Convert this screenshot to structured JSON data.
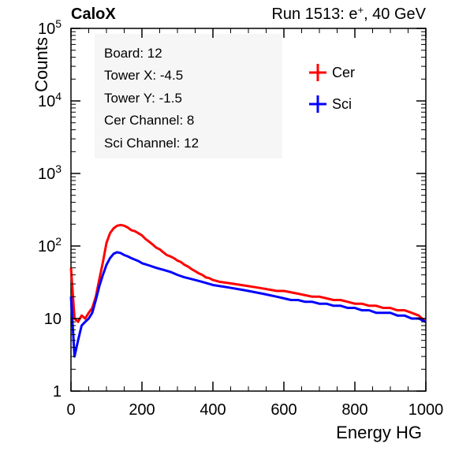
{
  "header": {
    "left": "CaloX",
    "right_prefix": "Run 1513: e",
    "right_sup": "+",
    "right_suffix": ", 40 GeV"
  },
  "info_box": {
    "lines": [
      "Board: 12",
      "Tower X: -4.5",
      "Tower Y: -1.5",
      "Cer Channel: 8",
      "Sci Channel: 12"
    ]
  },
  "chart_data": {
    "type": "line",
    "title": "",
    "xlabel": "Energy HG",
    "ylabel": "Counts",
    "xlim": [
      0,
      1000
    ],
    "ylim": [
      1,
      100000
    ],
    "yscale": "log",
    "grid": false,
    "legend_position": "top-right",
    "x_ticks": [
      0,
      200,
      400,
      600,
      800,
      1000
    ],
    "x_tick_labels": [
      "0",
      "200",
      "400",
      "600",
      "800",
      "1000"
    ],
    "y_ticks": [
      1,
      10,
      100,
      1000,
      10000,
      100000
    ],
    "y_tick_labels": [
      {
        "base": "1",
        "exp": ""
      },
      {
        "base": "10",
        "exp": ""
      },
      {
        "base": "10",
        "exp": "2"
      },
      {
        "base": "10",
        "exp": "3"
      },
      {
        "base": "10",
        "exp": "4"
      },
      {
        "base": "10",
        "exp": "5"
      }
    ],
    "series": [
      {
        "name": "Cer",
        "color": "#ff0000",
        "points": [
          [
            0,
            50
          ],
          [
            10,
            10
          ],
          [
            20,
            9
          ],
          [
            30,
            11
          ],
          [
            40,
            10
          ],
          [
            50,
            12
          ],
          [
            60,
            14
          ],
          [
            70,
            20
          ],
          [
            80,
            35
          ],
          [
            90,
            60
          ],
          [
            100,
            110
          ],
          [
            110,
            150
          ],
          [
            120,
            175
          ],
          [
            130,
            190
          ],
          [
            140,
            195
          ],
          [
            150,
            190
          ],
          [
            160,
            180
          ],
          [
            170,
            165
          ],
          [
            180,
            160
          ],
          [
            190,
            150
          ],
          [
            200,
            140
          ],
          [
            210,
            125
          ],
          [
            220,
            115
          ],
          [
            230,
            105
          ],
          [
            240,
            95
          ],
          [
            250,
            90
          ],
          [
            260,
            82
          ],
          [
            270,
            75
          ],
          [
            280,
            72
          ],
          [
            290,
            68
          ],
          [
            300,
            63
          ],
          [
            310,
            60
          ],
          [
            320,
            55
          ],
          [
            330,
            52
          ],
          [
            340,
            48
          ],
          [
            350,
            45
          ],
          [
            360,
            42
          ],
          [
            370,
            40
          ],
          [
            380,
            37
          ],
          [
            390,
            36
          ],
          [
            400,
            34
          ],
          [
            420,
            32
          ],
          [
            440,
            31
          ],
          [
            460,
            30
          ],
          [
            480,
            29
          ],
          [
            500,
            28
          ],
          [
            520,
            27
          ],
          [
            540,
            26
          ],
          [
            560,
            25
          ],
          [
            580,
            24
          ],
          [
            600,
            24
          ],
          [
            620,
            23
          ],
          [
            640,
            22
          ],
          [
            660,
            21
          ],
          [
            680,
            20
          ],
          [
            700,
            20
          ],
          [
            720,
            19
          ],
          [
            740,
            18
          ],
          [
            760,
            18
          ],
          [
            780,
            17
          ],
          [
            800,
            16
          ],
          [
            820,
            16
          ],
          [
            840,
            15
          ],
          [
            860,
            15
          ],
          [
            880,
            14
          ],
          [
            900,
            14
          ],
          [
            920,
            13
          ],
          [
            940,
            13
          ],
          [
            960,
            12
          ],
          [
            980,
            11
          ],
          [
            1000,
            9
          ]
        ]
      },
      {
        "name": "Sci",
        "color": "#0000ff",
        "points": [
          [
            0,
            20
          ],
          [
            10,
            3
          ],
          [
            20,
            5
          ],
          [
            30,
            8
          ],
          [
            40,
            9
          ],
          [
            50,
            10
          ],
          [
            60,
            12
          ],
          [
            70,
            18
          ],
          [
            80,
            28
          ],
          [
            90,
            40
          ],
          [
            100,
            55
          ],
          [
            110,
            68
          ],
          [
            120,
            78
          ],
          [
            130,
            82
          ],
          [
            140,
            80
          ],
          [
            150,
            75
          ],
          [
            160,
            72
          ],
          [
            170,
            68
          ],
          [
            180,
            65
          ],
          [
            190,
            62
          ],
          [
            200,
            58
          ],
          [
            220,
            54
          ],
          [
            240,
            50
          ],
          [
            260,
            47
          ],
          [
            280,
            44
          ],
          [
            300,
            40
          ],
          [
            320,
            37
          ],
          [
            340,
            35
          ],
          [
            360,
            33
          ],
          [
            380,
            31
          ],
          [
            400,
            29
          ],
          [
            420,
            28
          ],
          [
            440,
            27
          ],
          [
            460,
            26
          ],
          [
            480,
            25
          ],
          [
            500,
            24
          ],
          [
            520,
            23
          ],
          [
            540,
            22
          ],
          [
            560,
            21
          ],
          [
            580,
            20
          ],
          [
            600,
            19
          ],
          [
            620,
            18
          ],
          [
            640,
            18
          ],
          [
            660,
            17
          ],
          [
            680,
            17
          ],
          [
            700,
            16
          ],
          [
            720,
            16
          ],
          [
            740,
            15
          ],
          [
            760,
            15
          ],
          [
            780,
            14
          ],
          [
            800,
            14
          ],
          [
            820,
            13
          ],
          [
            840,
            13
          ],
          [
            860,
            12
          ],
          [
            880,
            12
          ],
          [
            900,
            12
          ],
          [
            920,
            11
          ],
          [
            940,
            11
          ],
          [
            960,
            10
          ],
          [
            980,
            10
          ],
          [
            1000,
            9
          ]
        ]
      }
    ]
  }
}
